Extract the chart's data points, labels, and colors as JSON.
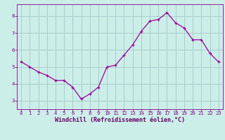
{
  "x": [
    0,
    1,
    2,
    3,
    4,
    5,
    6,
    7,
    8,
    9,
    10,
    11,
    12,
    13,
    14,
    15,
    16,
    17,
    18,
    19,
    20,
    21,
    22,
    23
  ],
  "y": [
    5.3,
    5.0,
    4.7,
    4.5,
    4.2,
    4.2,
    3.8,
    3.1,
    3.4,
    3.8,
    5.0,
    5.1,
    5.7,
    6.3,
    7.1,
    7.7,
    7.8,
    8.2,
    7.6,
    7.3,
    6.6,
    6.6,
    5.8,
    5.3
  ],
  "line_color": "#990099",
  "marker": "+",
  "bg_color": "#cceee8",
  "grid_color": "#aacccc",
  "xlabel": "Windchill (Refroidissement éolien,°C)",
  "xlim": [
    -0.5,
    23.5
  ],
  "ylim": [
    2.5,
    8.7
  ],
  "yticks": [
    3,
    4,
    5,
    6,
    7,
    8
  ],
  "xticks": [
    0,
    1,
    2,
    3,
    4,
    5,
    6,
    7,
    8,
    9,
    10,
    11,
    12,
    13,
    14,
    15,
    16,
    17,
    18,
    19,
    20,
    21,
    22,
    23
  ],
  "tick_color": "#880088",
  "label_color": "#660066",
  "tick_fontsize": 5.2,
  "xlabel_fontsize": 6.0
}
